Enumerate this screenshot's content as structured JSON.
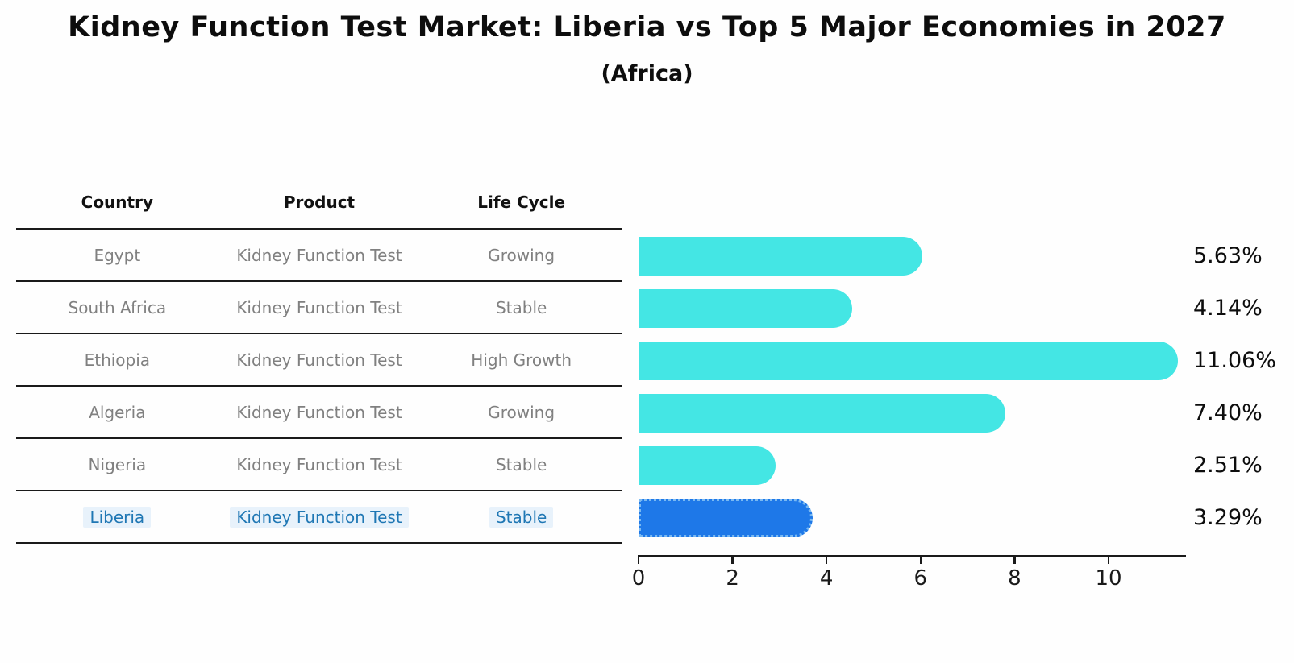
{
  "title": "Kidney Function Test Market: Liberia vs Top 5 Major Economies in 2027",
  "subtitle": "(Africa)",
  "table": {
    "headers": [
      "Country",
      "Product",
      "Life Cycle"
    ],
    "rows": [
      {
        "country": "Egypt",
        "product": "Kidney Function Test",
        "life_cycle": "Growing",
        "highlighted": false
      },
      {
        "country": "South Africa",
        "product": "Kidney Function Test",
        "life_cycle": "Stable",
        "highlighted": false
      },
      {
        "country": "Ethiopia",
        "product": "Kidney Function Test",
        "life_cycle": "High Growth",
        "highlighted": false
      },
      {
        "country": "Algeria",
        "product": "Kidney Function Test",
        "life_cycle": "Growing",
        "highlighted": false
      },
      {
        "country": "Nigeria",
        "product": "Kidney Function Test",
        "life_cycle": "Stable",
        "highlighted": false
      },
      {
        "country": "Liberia",
        "product": "Kidney Function Test",
        "life_cycle": "Stable",
        "highlighted": true
      }
    ]
  },
  "chart_data": {
    "type": "bar",
    "orientation": "horizontal",
    "title": "Kidney Function Test Market: Liberia vs Top 5 Major Economies in 2027",
    "subtitle": "(Africa)",
    "categories": [
      "Egypt",
      "South Africa",
      "Ethiopia",
      "Algeria",
      "Nigeria",
      "Liberia"
    ],
    "values": [
      5.63,
      4.14,
      11.06,
      7.4,
      2.51,
      3.29
    ],
    "value_labels": [
      "5.63%",
      "4.14%",
      "11.06%",
      "7.40%",
      "2.51%",
      "3.29%"
    ],
    "xlabel": "",
    "ylabel": "",
    "xlim": [
      0,
      11.63
    ],
    "xticks": [
      0,
      2,
      4,
      6,
      8,
      10
    ],
    "grid": false,
    "legend": false,
    "bar_color": "#44E6E4",
    "highlight_index": 5,
    "highlight_color": "#1E78E8",
    "highlight_border_color": "#79B9F2",
    "highlight_text_color": "#1f77b4"
  }
}
